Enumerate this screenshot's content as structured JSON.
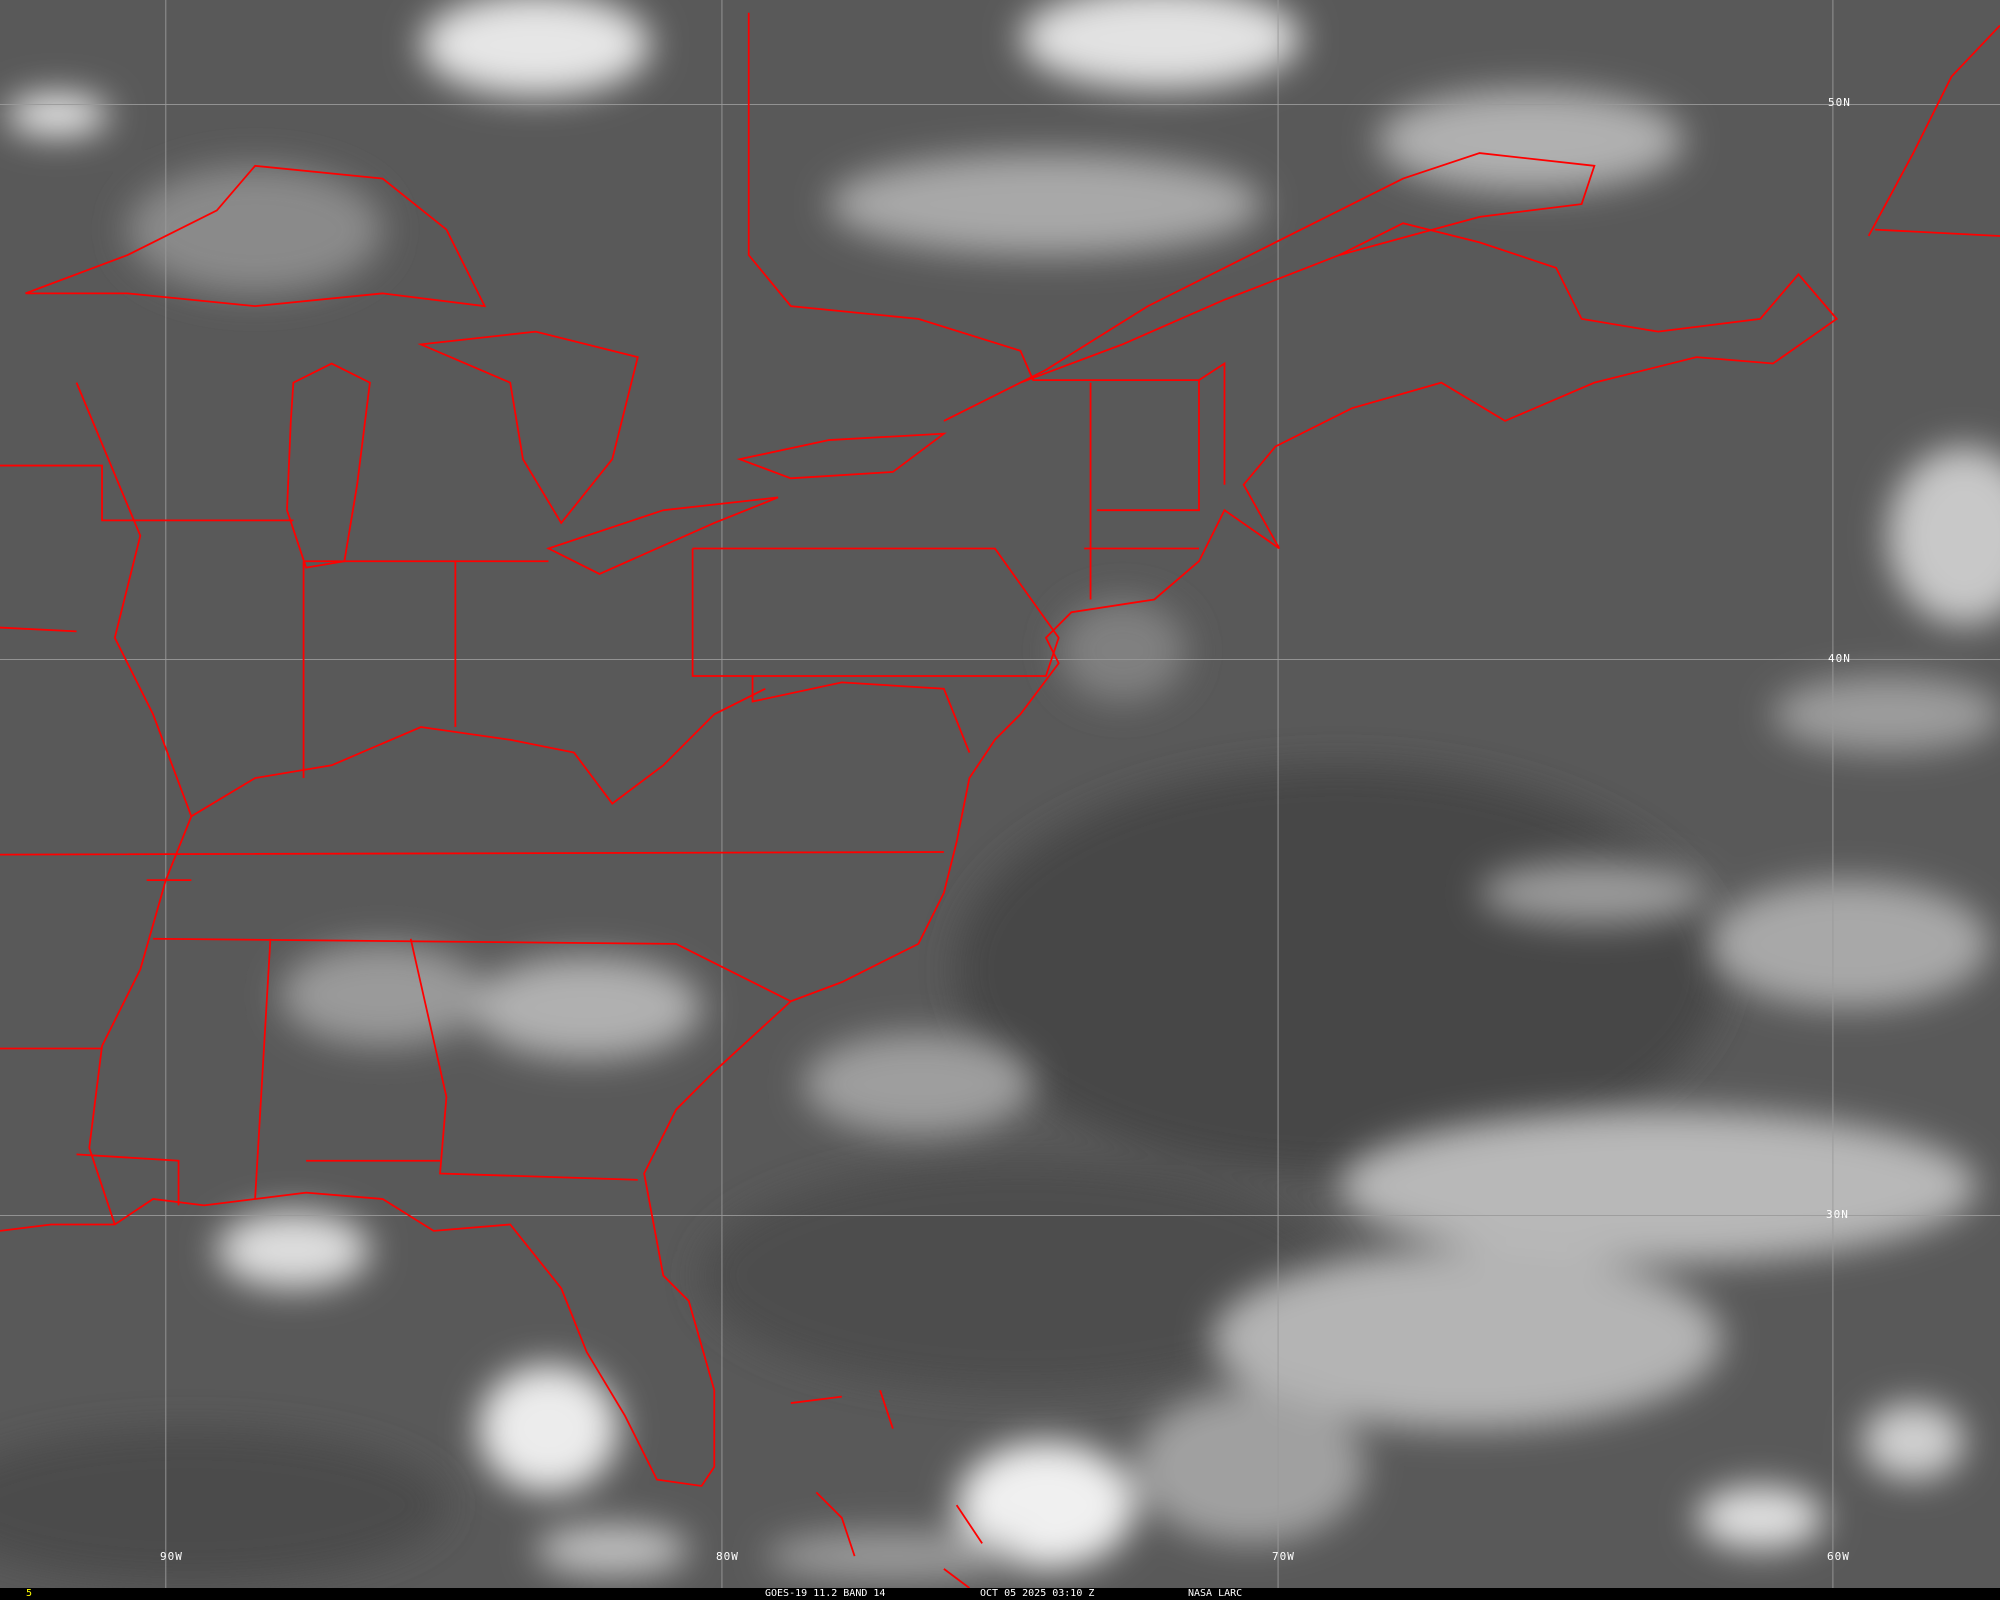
{
  "image": {
    "satellite": "GOES-19",
    "product": "11.2 BAND 14",
    "datetime": "OCT 05 2025 03:10 Z",
    "source": "NASA LARC",
    "frame_indicator": "5"
  },
  "grid": {
    "latitude_labels": [
      "50N",
      "40N",
      "30N"
    ],
    "longitude_labels": [
      "90W",
      "80W",
      "70W",
      "60W"
    ]
  },
  "colors": {
    "boundaries": "#ff0000",
    "gridlines": "#9a9a9a",
    "background": "#5a5a5a",
    "frame_indicator": "#ffff00"
  }
}
